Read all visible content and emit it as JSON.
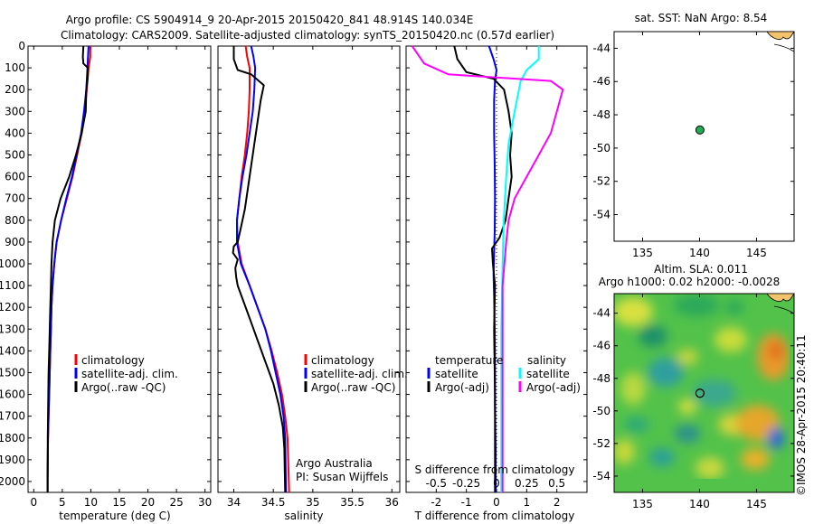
{
  "figure": {
    "title_line1": "Argo profile: CS 5904914_9 20-Apr-2015 20150420_841 48.914S 140.034E",
    "title_line2": "Climatology: CARS2009. Satellite-adjusted climatology: synTS_20150420.nc (0.57d earlier)",
    "credit": "©IMOS 28-Apr-2015 20:40:11"
  },
  "colors": {
    "climatology": "#ff0000",
    "satellite": "#0000ff",
    "argo": "#000000",
    "salinity_satellite": "#00ffff",
    "salinity_argo": "#ff00ff",
    "float_marker": "#22aa55"
  },
  "legend1": {
    "items": [
      "climatology",
      "satellite-adj. clim.",
      "Argo(..raw -QC)"
    ]
  },
  "legend2": {
    "items": [
      "climatology",
      "satellite-adj. clim.",
      "Argo(..raw -QC)"
    ],
    "note_line1": "Argo Australia",
    "note_line2": "PI: Susan Wijffels"
  },
  "legend3": {
    "header_temperature": "temperature",
    "header_salinity": "salinity",
    "items": [
      "satellite",
      "Argo(-adj)",
      "satellite",
      "Argo(-adj)"
    ]
  },
  "map1": {
    "title": "sat. SST: NaN Argo: 8.54"
  },
  "map2": {
    "title_line1": "Altim. SLA: 0.011",
    "title_line2": "Argo h1000: 0.02 h2000: -0.0028"
  },
  "chart_data": [
    {
      "type": "line",
      "id": "temperature",
      "xlabel": "temperature (deg C)",
      "ylabel": "",
      "xlim": [
        -1,
        31
      ],
      "ylim": [
        2050,
        0
      ],
      "xticks": [
        0,
        5,
        10,
        15,
        20,
        25,
        30
      ],
      "yticks": [
        0,
        100,
        200,
        300,
        400,
        500,
        600,
        700,
        800,
        900,
        1000,
        1100,
        1200,
        1300,
        1400,
        1500,
        1600,
        1700,
        1800,
        1900,
        2000
      ],
      "series": [
        {
          "name": "climatology",
          "x": [
            9.9,
            9.9,
            9.6,
            9.3,
            8.9,
            8.4,
            7.6,
            6.8,
            5.8,
            4.8,
            4.0,
            3.6,
            3.3,
            3.1,
            3.0,
            2.9,
            2.8,
            2.7,
            2.6,
            2.5,
            2.45,
            2.4,
            2.4
          ],
          "y": [
            0,
            50,
            100,
            200,
            300,
            400,
            500,
            600,
            700,
            800,
            900,
            1000,
            1100,
            1200,
            1300,
            1400,
            1500,
            1600,
            1700,
            1800,
            1900,
            2000,
            2050
          ]
        },
        {
          "name": "satellite-adj. clim.",
          "x": [
            9.6,
            9.5,
            9.4,
            9.2,
            8.8,
            8.3,
            7.5,
            6.7,
            5.7,
            4.8,
            4.0,
            3.6,
            3.3,
            3.1,
            3.0,
            2.9,
            2.8,
            2.7,
            2.6,
            2.5,
            2.45,
            2.4,
            2.4
          ],
          "y": [
            0,
            50,
            100,
            200,
            300,
            400,
            500,
            600,
            700,
            800,
            900,
            1000,
            1100,
            1200,
            1300,
            1400,
            1500,
            1600,
            1700,
            1800,
            1900,
            2000,
            2050
          ]
        },
        {
          "name": "Argo(..raw -QC)",
          "x": [
            8.7,
            8.6,
            8.7,
            9.5,
            9.4,
            9.2,
            9.1,
            8.4,
            7.4,
            6.2,
            4.7,
            3.7,
            3.3,
            3.1,
            3.0,
            2.9,
            2.8,
            2.7,
            2.6,
            2.55,
            2.5,
            2.45,
            2.45
          ],
          "y": [
            0,
            50,
            80,
            100,
            150,
            200,
            300,
            400,
            500,
            600,
            700,
            800,
            900,
            1000,
            1100,
            1200,
            1300,
            1400,
            1500,
            1600,
            1700,
            1800,
            2050
          ]
        }
      ]
    },
    {
      "type": "line",
      "id": "salinity",
      "xlabel": "salinity",
      "ylabel": "",
      "xlim": [
        33.8,
        36.1
      ],
      "ylim": [
        2050,
        0
      ],
      "xticks": [
        34,
        34.5,
        35,
        35.5,
        36
      ],
      "series": [
        {
          "name": "climatology",
          "x": [
            34.15,
            34.17,
            34.2,
            34.2,
            34.19,
            34.17,
            34.14,
            34.1,
            34.07,
            34.04,
            34.05,
            34.1,
            34.2,
            34.3,
            34.4,
            34.48,
            34.55,
            34.61,
            34.65,
            34.68,
            34.7
          ],
          "y": [
            0,
            50,
            100,
            200,
            300,
            400,
            500,
            600,
            700,
            800,
            900,
            1000,
            1100,
            1200,
            1300,
            1400,
            1500,
            1600,
            1700,
            1800,
            2050
          ]
        },
        {
          "name": "satellite-adj. clim.",
          "x": [
            34.22,
            34.25,
            34.27,
            34.26,
            34.24,
            34.2,
            34.16,
            34.11,
            34.07,
            34.04,
            34.04,
            34.09,
            34.2,
            34.3,
            34.4,
            34.47,
            34.53,
            34.59,
            34.63,
            34.65,
            34.66
          ],
          "y": [
            0,
            50,
            100,
            200,
            300,
            400,
            500,
            600,
            700,
            800,
            900,
            1000,
            1100,
            1200,
            1300,
            1400,
            1500,
            1600,
            1700,
            1800,
            2050
          ]
        },
        {
          "name": "Argo(..raw -QC)",
          "x": [
            34.0,
            34.0,
            34.05,
            34.22,
            34.38,
            34.34,
            34.3,
            34.26,
            34.22,
            34.18,
            34.14,
            34.08,
            34.05,
            34.0,
            33.99,
            34.05,
            34.02,
            34.03,
            34.05,
            34.1,
            34.2,
            34.3,
            34.4,
            34.5,
            34.57,
            34.62,
            34.64,
            34.65
          ],
          "y": [
            0,
            60,
            110,
            130,
            180,
            250,
            350,
            450,
            550,
            650,
            750,
            850,
            900,
            920,
            950,
            980,
            1020,
            1060,
            1100,
            1150,
            1250,
            1350,
            1450,
            1550,
            1650,
            1750,
            1850,
            2050
          ]
        }
      ]
    },
    {
      "type": "line",
      "id": "difference",
      "xlabel": "T difference from climatology",
      "xlabel_top": "S difference from climatology",
      "ylabel": "",
      "xlim": [
        -3,
        3
      ],
      "ylim": [
        2050,
        0
      ],
      "xticks": [
        -2,
        -1,
        0,
        1,
        2
      ],
      "xticks_S": [
        -0.5,
        -0.25,
        0,
        0.25,
        0.5
      ],
      "series": [
        {
          "name": "temperature satellite",
          "x": [
            -0.25,
            -0.1,
            0.0,
            -0.05,
            -0.08,
            -0.08,
            -0.06,
            -0.05,
            -0.06,
            -0.08,
            -0.1,
            -0.08,
            -0.06,
            -0.05,
            -0.05,
            -0.03,
            -0.03
          ],
          "y": [
            0,
            60,
            110,
            160,
            250,
            400,
            550,
            700,
            850,
            950,
            1050,
            1150,
            1300,
            1450,
            1650,
            1850,
            2050
          ]
        },
        {
          "name": "temperature Argo(-adj)",
          "x": [
            -1.4,
            -1.3,
            -1.0,
            -0.1,
            0.25,
            0.4,
            0.5,
            0.45,
            0.5,
            0.4,
            0.3,
            0.1,
            -0.15,
            -0.12,
            -0.05,
            -0.08,
            -0.05,
            -0.05
          ],
          "y": [
            0,
            60,
            120,
            150,
            200,
            300,
            400,
            500,
            600,
            700,
            800,
            880,
            930,
            1000,
            1100,
            1300,
            1600,
            2050
          ]
        },
        {
          "name": "salinity satellite",
          "x": [
            0.35,
            0.35,
            0.25,
            0.2,
            0.15,
            0.1,
            0.08,
            0.06,
            0.05,
            0.04,
            0.04,
            0.04
          ],
          "y": [
            0,
            60,
            110,
            160,
            300,
            450,
            600,
            800,
            1000,
            1300,
            1600,
            2050
          ]
        },
        {
          "name": "salinity Argo(-adj)",
          "x": [
            -0.7,
            -0.6,
            -0.4,
            0.45,
            0.55,
            0.5,
            0.45,
            0.35,
            0.25,
            0.15,
            0.1,
            0.08,
            0.05,
            0.05,
            0.05
          ],
          "y": [
            0,
            80,
            130,
            160,
            200,
            300,
            400,
            500,
            600,
            700,
            800,
            900,
            1100,
            1500,
            2050
          ]
        },
        {
          "name": "climatology",
          "x": [
            0,
            0
          ],
          "y": [
            0,
            2050
          ]
        }
      ]
    },
    {
      "type": "scatter",
      "id": "map_sst",
      "xlim": [
        132.5,
        148.3
      ],
      "ylim": [
        -55.6,
        -43.0
      ],
      "xticks": [
        135,
        140,
        145
      ],
      "yticks": [
        -44,
        -46,
        -48,
        -50,
        -52,
        -54
      ],
      "points": [
        {
          "x": 140.034,
          "y": -48.914
        }
      ]
    },
    {
      "type": "heatmap",
      "id": "map_sla",
      "xlim": [
        132.5,
        148.3
      ],
      "ylim": [
        -55.0,
        -42.8
      ],
      "xticks": [
        135,
        140,
        145
      ],
      "yticks": [
        -44,
        -46,
        -48,
        -50,
        -52,
        -54
      ],
      "points": [
        {
          "x": 140.034,
          "y": -48.914
        }
      ]
    }
  ]
}
